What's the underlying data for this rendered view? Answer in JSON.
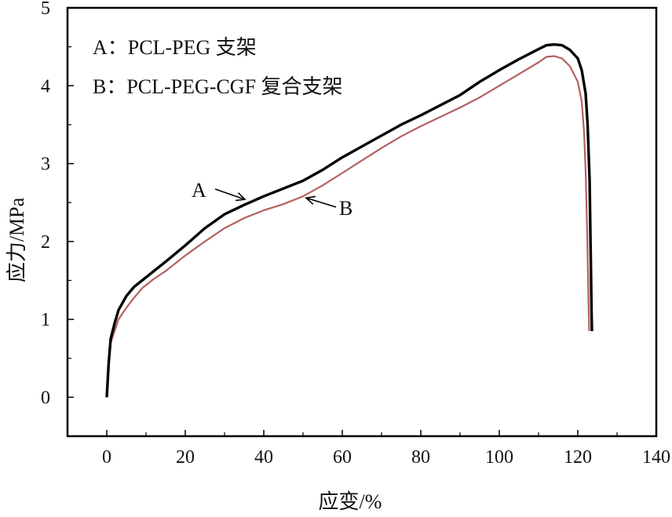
{
  "chart_data": {
    "type": "line",
    "xlabel": "应变/%",
    "ylabel": "应力/MPa",
    "xlim": [
      -10,
      140
    ],
    "ylim": [
      -0.5,
      5
    ],
    "xticks": [
      0,
      20,
      40,
      60,
      80,
      100,
      120,
      140
    ],
    "yticks": [
      0,
      1,
      2,
      3,
      4,
      5
    ],
    "grid": false,
    "legend_position": "top-left",
    "legend": [
      {
        "label": "A：PCL-PEG 支架"
      },
      {
        "label": "B：PCL-PEG-CGF 复合支架"
      }
    ],
    "series": [
      {
        "key": "A",
        "color": "#000000",
        "x": [
          0,
          0.5,
          1,
          2,
          3,
          5,
          7,
          9,
          12,
          15,
          20,
          25,
          30,
          35,
          40,
          45,
          50,
          55,
          60,
          65,
          70,
          75,
          80,
          85,
          90,
          95,
          100,
          105,
          110,
          112,
          114,
          116,
          118,
          120,
          121,
          122,
          122.5,
          123,
          123.3,
          123.5,
          123.6
        ],
        "y": [
          0,
          0.45,
          0.75,
          0.95,
          1.12,
          1.3,
          1.42,
          1.5,
          1.62,
          1.74,
          1.95,
          2.17,
          2.35,
          2.47,
          2.58,
          2.68,
          2.78,
          2.92,
          3.08,
          3.22,
          3.36,
          3.5,
          3.62,
          3.75,
          3.88,
          4.05,
          4.2,
          4.34,
          4.47,
          4.52,
          4.53,
          4.52,
          4.46,
          4.35,
          4.2,
          3.9,
          3.5,
          2.8,
          1.8,
          1.1,
          0.85
        ]
      },
      {
        "key": "B",
        "color": "#b46060",
        "x": [
          0,
          0.5,
          1,
          2,
          3,
          5,
          7,
          9,
          12,
          15,
          20,
          25,
          30,
          35,
          40,
          45,
          50,
          55,
          60,
          65,
          70,
          75,
          80,
          85,
          90,
          95,
          100,
          105,
          110,
          112,
          114,
          116,
          118,
          120,
          121,
          121.6,
          122,
          122.4,
          122.7,
          122.9
        ],
        "y": [
          0,
          0.4,
          0.7,
          0.85,
          1.0,
          1.15,
          1.28,
          1.4,
          1.52,
          1.62,
          1.82,
          2.0,
          2.17,
          2.3,
          2.4,
          2.48,
          2.58,
          2.72,
          2.88,
          3.04,
          3.2,
          3.35,
          3.48,
          3.6,
          3.72,
          3.85,
          4.0,
          4.15,
          4.3,
          4.37,
          4.38,
          4.35,
          4.25,
          4.05,
          3.8,
          3.4,
          2.9,
          2.1,
          1.3,
          0.85
        ]
      }
    ],
    "annotations": [
      {
        "text": "A",
        "points_to": [
          36,
          2.52
        ]
      },
      {
        "text": "B",
        "points_to": [
          50,
          2.58
        ]
      }
    ]
  }
}
